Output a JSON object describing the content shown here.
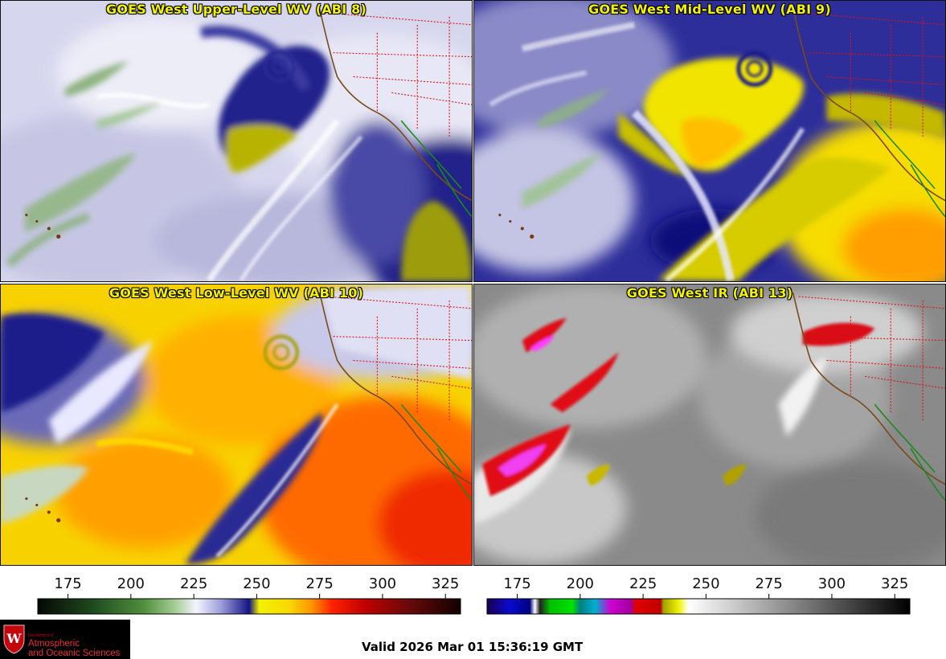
{
  "panels": {
    "upper": {
      "title": "GOES West Upper-Level WV (ABI 8)"
    },
    "mid": {
      "title": "GOES West Mid-Level WV (ABI 9)"
    },
    "low": {
      "title": "GOES West Low-Level WV (ABI 10)"
    },
    "ir": {
      "title": "GOES West IR (ABI 13)"
    }
  },
  "colorbars": {
    "wv": {
      "ticks": [
        "175",
        "200",
        "225",
        "250",
        "275",
        "300",
        "325"
      ],
      "tick_values": [
        175,
        200,
        225,
        250,
        275,
        300,
        325
      ],
      "range": [
        163,
        331
      ],
      "stops": [
        {
          "v": 163,
          "c": "#050805"
        },
        {
          "v": 185,
          "c": "#1f4a1f"
        },
        {
          "v": 205,
          "c": "#4f8f3c"
        },
        {
          "v": 218,
          "c": "#a9cf9a"
        },
        {
          "v": 226,
          "c": "#f4f4ff"
        },
        {
          "v": 236,
          "c": "#9c9cd8"
        },
        {
          "v": 247,
          "c": "#141485"
        },
        {
          "v": 251,
          "c": "#f2f200"
        },
        {
          "v": 263,
          "c": "#f8d800"
        },
        {
          "v": 272,
          "c": "#ff9200"
        },
        {
          "v": 280,
          "c": "#ff2200"
        },
        {
          "v": 293,
          "c": "#c00000"
        },
        {
          "v": 310,
          "c": "#6a0a0a"
        },
        {
          "v": 331,
          "c": "#120000"
        }
      ]
    },
    "ir": {
      "ticks": [
        "175",
        "200",
        "225",
        "250",
        "275",
        "300",
        "325"
      ],
      "tick_values": [
        175,
        200,
        225,
        250,
        275,
        300,
        325
      ],
      "range": [
        163,
        331
      ],
      "stops": [
        {
          "v": 163,
          "c": "#1a0050"
        },
        {
          "v": 172,
          "c": "#0a0ad0"
        },
        {
          "v": 180,
          "c": "#000080"
        },
        {
          "v": 182,
          "c": "#ffffff"
        },
        {
          "v": 184,
          "c": "#222222"
        },
        {
          "v": 188,
          "c": "#00c000"
        },
        {
          "v": 197,
          "c": "#00e000"
        },
        {
          "v": 200,
          "c": "#008080"
        },
        {
          "v": 206,
          "c": "#00b0d0"
        },
        {
          "v": 212,
          "c": "#d000d0"
        },
        {
          "v": 220,
          "c": "#a000a0"
        },
        {
          "v": 222,
          "c": "#e00000"
        },
        {
          "v": 232,
          "c": "#c00000"
        },
        {
          "v": 233,
          "c": "#a0a000"
        },
        {
          "v": 239,
          "c": "#f0f000"
        },
        {
          "v": 243,
          "c": "#ffffff"
        },
        {
          "v": 331,
          "c": "#000000"
        }
      ]
    }
  },
  "logo": {
    "dept_line": "Department of",
    "name_line1": "Atmospheric",
    "name_line2": "and Oceanic Sciences"
  },
  "valid_time": "Valid 2026 Mar 01 15:36:19 GMT"
}
